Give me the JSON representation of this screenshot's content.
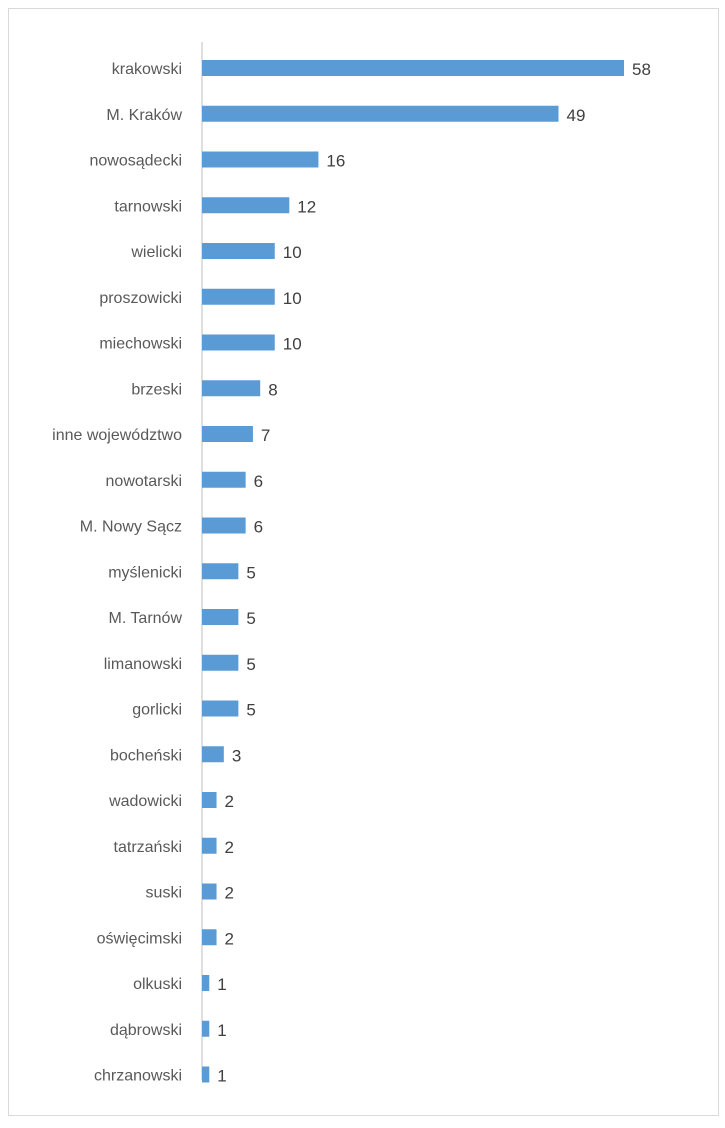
{
  "colors": {
    "bar": "#5b9bd5",
    "axis": "#bfbfbf",
    "category_text": "#595959",
    "value_text": "#404040"
  },
  "chart_data": {
    "type": "bar",
    "orientation": "horizontal",
    "title": "",
    "xlabel": "",
    "ylabel": "",
    "xlim": [
      0,
      58
    ],
    "grid": false,
    "legend": "none",
    "categories": [
      "krakowski",
      "M. Kraków",
      "nowosądecki",
      "tarnowski",
      "wielicki",
      "proszowicki",
      "miechowski",
      "brzeski",
      "inne województwo",
      "nowotarski",
      "M. Nowy Sącz",
      "myślenicki",
      "M. Tarnów",
      "limanowski",
      "gorlicki",
      "bocheński",
      "wadowicki",
      "tatrzański",
      "suski",
      "oświęcimski",
      "olkuski",
      "dąbrowski",
      "chrzanowski"
    ],
    "values": [
      58,
      49,
      16,
      12,
      10,
      10,
      10,
      8,
      7,
      6,
      6,
      5,
      5,
      5,
      5,
      3,
      2,
      2,
      2,
      2,
      1,
      1,
      1
    ]
  }
}
